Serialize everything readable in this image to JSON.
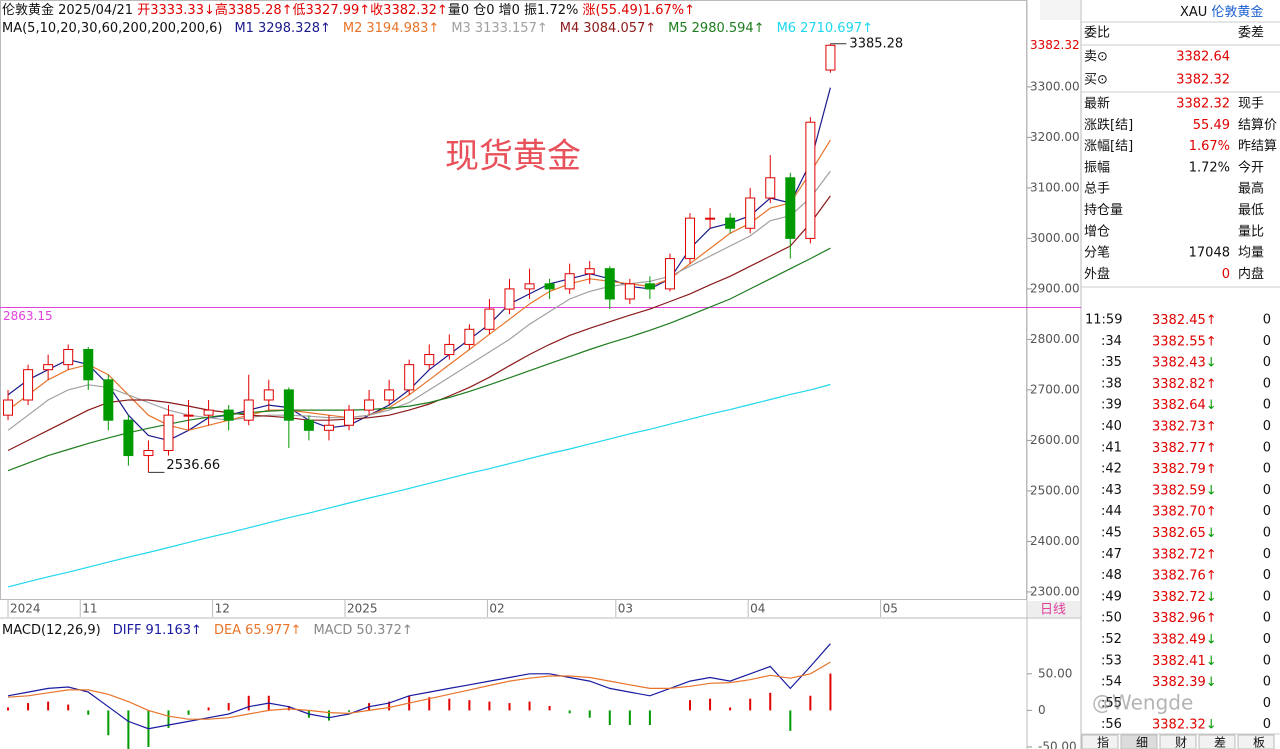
{
  "header": {
    "line1": [
      {
        "text": "伦敦黄金 2025/04/21 ",
        "color": "#111111"
      },
      {
        "text": "开3333.33↓",
        "color": "#e00000"
      },
      {
        "text": "高3385.28↑",
        "color": "#e00000"
      },
      {
        "text": "低3327.99↑",
        "color": "#e00000"
      },
      {
        "text": "收3382.32↑",
        "color": "#e00000"
      },
      {
        "text": "量0  仓0  增0 振1.72% ",
        "color": "#111111"
      },
      {
        "text": "涨(55.49)1.67%↑",
        "color": "#e00000"
      }
    ],
    "ma_params": "MA(5,10,20,30,60,200,200,200,6)",
    "macd_params": "MACD(12,26,9)"
  },
  "watermark": "现货黄金",
  "overlay_mark": "@Wengde",
  "chart_data": [
    {
      "type": "candlestick",
      "color_up": "#e00000",
      "color_down": "#009a00",
      "open": [
        2650,
        2680,
        2740,
        2750,
        2780,
        2720,
        2640,
        2570,
        2580,
        2650,
        2650,
        2660,
        2640,
        2680,
        2700,
        2640,
        2620,
        2630,
        2660,
        2680,
        2700,
        2750,
        2770,
        2790,
        2820,
        2860,
        2900,
        2910,
        2900,
        2930,
        2940,
        2880,
        2910,
        2900,
        2960,
        3040,
        3040,
        3020,
        3080,
        3120,
        3000,
        3333.33
      ],
      "high": [
        2700,
        2750,
        2770,
        2790,
        2785,
        2730,
        2650,
        2600,
        2670,
        2680,
        2680,
        2670,
        2730,
        2720,
        2705,
        2650,
        2650,
        2670,
        2700,
        2720,
        2760,
        2790,
        2810,
        2830,
        2880,
        2920,
        2940,
        2920,
        2950,
        2955,
        2945,
        2920,
        2925,
        2970,
        3050,
        3060,
        3050,
        3100,
        3165,
        3130,
        3240,
        3385.28
      ],
      "low": [
        2640,
        2670,
        2720,
        2740,
        2700,
        2620,
        2550,
        2536.66,
        2570,
        2620,
        2630,
        2620,
        2630,
        2660,
        2585,
        2600,
        2600,
        2620,
        2650,
        2670,
        2690,
        2740,
        2760,
        2780,
        2810,
        2850,
        2880,
        2880,
        2890,
        2910,
        2860,
        2870,
        2880,
        2895,
        2950,
        3020,
        3010,
        3010,
        3070,
        2960,
        2990,
        3327.99
      ],
      "close": [
        2680,
        2740,
        2750,
        2780,
        2720,
        2640,
        2570,
        2580,
        2650,
        2650,
        2660,
        2640,
        2680,
        2700,
        2640,
        2620,
        2630,
        2660,
        2680,
        2700,
        2750,
        2770,
        2790,
        2820,
        2860,
        2900,
        2910,
        2900,
        2930,
        2940,
        2880,
        2910,
        2900,
        2960,
        3040,
        3040,
        3020,
        3080,
        3120,
        3000,
        3230,
        3382.32
      ],
      "series": [
        {
          "name": "M1",
          "last_label": "3298.328↑",
          "color": "#1a1a8c",
          "values": [
            2690,
            2720,
            2740,
            2760,
            2750,
            2710,
            2650,
            2610,
            2600,
            2620,
            2645,
            2650,
            2660,
            2670,
            2665,
            2640,
            2625,
            2630,
            2650,
            2670,
            2700,
            2740,
            2770,
            2800,
            2830,
            2870,
            2890,
            2910,
            2920,
            2930,
            2920,
            2905,
            2900,
            2920,
            2980,
            3020,
            3030,
            3045,
            3080,
            3070,
            3150,
            3298.328
          ]
        },
        {
          "name": "M2",
          "last_label": "3194.983↑",
          "color": "#e8742a",
          "values": [
            2660,
            2690,
            2720,
            2740,
            2750,
            2730,
            2690,
            2650,
            2630,
            2620,
            2630,
            2640,
            2650,
            2660,
            2660,
            2655,
            2650,
            2645,
            2650,
            2665,
            2690,
            2720,
            2750,
            2780,
            2810,
            2840,
            2870,
            2895,
            2910,
            2920,
            2915,
            2910,
            2905,
            2920,
            2950,
            2980,
            3010,
            3030,
            3060,
            3070,
            3130,
            3194.983
          ]
        },
        {
          "name": "M3",
          "last_label": "3133.157↑",
          "color": "#a0a0a0",
          "values": [
            2620,
            2650,
            2680,
            2700,
            2710,
            2705,
            2690,
            2675,
            2660,
            2650,
            2645,
            2640,
            2645,
            2650,
            2650,
            2648,
            2645,
            2645,
            2650,
            2660,
            2675,
            2700,
            2725,
            2750,
            2775,
            2800,
            2830,
            2855,
            2880,
            2895,
            2905,
            2910,
            2915,
            2925,
            2945,
            2965,
            2985,
            3005,
            3035,
            3045,
            3080,
            3133.157
          ]
        },
        {
          "name": "M4",
          "last_label": "3084.057↑",
          "color": "#8b1a1a",
          "values": [
            2580,
            2600,
            2620,
            2640,
            2660,
            2675,
            2680,
            2680,
            2675,
            2668,
            2660,
            2655,
            2650,
            2648,
            2645,
            2640,
            2640,
            2642,
            2645,
            2650,
            2660,
            2672,
            2688,
            2705,
            2725,
            2748,
            2770,
            2790,
            2808,
            2822,
            2835,
            2848,
            2860,
            2875,
            2890,
            2908,
            2925,
            2945,
            2965,
            2985,
            3030,
            3084.057
          ]
        },
        {
          "name": "M5",
          "last_label": "2980.594↑",
          "color": "#1e7d1e",
          "values": [
            2540,
            2555,
            2570,
            2582,
            2594,
            2605,
            2615,
            2624,
            2632,
            2640,
            2646,
            2651,
            2655,
            2658,
            2660,
            2660,
            2660,
            2660,
            2661,
            2664,
            2668,
            2675,
            2685,
            2697,
            2710,
            2724,
            2738,
            2752,
            2766,
            2780,
            2793,
            2805,
            2818,
            2832,
            2848,
            2864,
            2880,
            2900,
            2920,
            2940,
            2960,
            2980.594
          ]
        },
        {
          "name": "M6",
          "last_label": "2710.697↑",
          "color": "#1ed8ec",
          "values": [
            2310,
            2320,
            2330,
            2339,
            2349,
            2359,
            2369,
            2378,
            2388,
            2398,
            2408,
            2417,
            2427,
            2437,
            2447,
            2456,
            2466,
            2476,
            2486,
            2495,
            2505,
            2515,
            2525,
            2535,
            2544,
            2554,
            2564,
            2574,
            2583,
            2593,
            2603,
            2613,
            2622,
            2632,
            2642,
            2652,
            2661,
            2671,
            2681,
            2691,
            2700,
            2710.697
          ]
        }
      ],
      "xlim": [
        -0.4,
        50.8
      ],
      "xticks": [
        {
          "value": 0,
          "label": "2024"
        },
        {
          "value": 3.6,
          "label": "11"
        },
        {
          "value": 10.2,
          "label": "12"
        },
        {
          "value": 16.8,
          "label": "2025"
        },
        {
          "value": 23.9,
          "label": "02"
        },
        {
          "value": 30.3,
          "label": "03"
        },
        {
          "value": 36.9,
          "label": "04"
        },
        {
          "value": 43.5,
          "label": "05"
        }
      ],
      "ylim": [
        2284,
        3472
      ],
      "yticks": [
        {
          "value": 3300,
          "label": "3300.00"
        },
        {
          "value": 3200,
          "label": "3200.00"
        },
        {
          "value": 3100,
          "label": "3100.00"
        },
        {
          "value": 3000,
          "label": "3000.00"
        },
        {
          "value": 2900,
          "label": "2900.00"
        },
        {
          "value": 2800,
          "label": "2800.00"
        },
        {
          "value": 2700,
          "label": "2700.00"
        },
        {
          "value": 2600,
          "label": "2600.00"
        },
        {
          "value": 2500,
          "label": "2500.00"
        },
        {
          "value": 2400,
          "label": "2400.00"
        },
        {
          "value": 2300,
          "label": "2300.00"
        }
      ],
      "hline": {
        "value": 2863.15,
        "color": "#e040e0"
      },
      "period_label": "日线"
    },
    {
      "type": "macd",
      "xlim": [
        -0.4,
        50.8
      ],
      "ylim": [
        -52.8,
        123.6
      ],
      "yticks": [
        {
          "value": 50,
          "label": "50.00"
        },
        0,
        {
          "value": -50,
          "label": "-50.00"
        }
      ],
      "series": [
        {
          "name": "DIFF",
          "last_label": "91.163↑",
          "color": "#1a1aa0",
          "values": [
            20,
            25,
            30,
            32,
            25,
            5,
            -15,
            -25,
            -20,
            -15,
            -10,
            -5,
            5,
            10,
            5,
            -5,
            -10,
            -5,
            5,
            10,
            20,
            25,
            30,
            35,
            40,
            45,
            50,
            50,
            45,
            40,
            30,
            25,
            20,
            30,
            40,
            45,
            40,
            50,
            60,
            30,
            60,
            91.163
          ]
        },
        {
          "name": "DEA",
          "last_label": "65.977↑",
          "color": "#e8742a",
          "values": [
            18,
            20,
            24,
            28,
            28,
            22,
            12,
            0,
            -8,
            -12,
            -12,
            -10,
            -5,
            0,
            2,
            0,
            -3,
            -4,
            0,
            4,
            10,
            16,
            22,
            28,
            34,
            40,
            44,
            47,
            47,
            45,
            40,
            35,
            30,
            30,
            33,
            37,
            38,
            42,
            48,
            44,
            50,
            65.977
          ]
        }
      ],
      "bars": {
        "name": "MACD",
        "last_label": "50.372↑",
        "color": "#888888",
        "color_up": "#e00000",
        "color_down": "#009a00",
        "values": [
          4,
          10,
          12,
          8,
          -6,
          -34,
          -54,
          -50,
          -24,
          -6,
          4,
          10,
          20,
          20,
          6,
          -10,
          -14,
          -2,
          10,
          12,
          20,
          18,
          16,
          14,
          12,
          10,
          12,
          6,
          -4,
          -10,
          -20,
          -20,
          -20,
          0,
          14,
          16,
          4,
          16,
          24,
          -28,
          20,
          50.372
        ]
      }
    }
  ],
  "quote": {
    "symbol": "XAU",
    "name": "伦敦黄金",
    "top_left": "委比",
    "top_right": "委差",
    "book": [
      {
        "label": "卖⊙",
        "value": "3382.64"
      },
      {
        "label": "买⊙",
        "value": "3382.32"
      }
    ],
    "rows": [
      {
        "label": "最新",
        "value": "3382.32",
        "color": "#e00000",
        "right": "现手"
      },
      {
        "label": "涨跌[结]",
        "value": "55.49",
        "color": "#e00000",
        "right": "结算价"
      },
      {
        "label": "涨幅[结]",
        "value": "1.67%",
        "color": "#e00000",
        "right": "昨结算"
      },
      {
        "label": "振幅",
        "value": "1.72%",
        "color": "#111111",
        "right": "今开"
      },
      {
        "label": "总手",
        "right": "最高"
      },
      {
        "label": "持仓量",
        "right": "最低"
      },
      {
        "label": "增仓",
        "right": "量比"
      },
      {
        "label": "分笔",
        "value": "17048",
        "color": "#111111",
        "right": "均量"
      },
      {
        "label": "外盘",
        "value": "0",
        "color": "#e00000",
        "right": "内盘"
      }
    ]
  },
  "ticks": [
    {
      "time": "11:59",
      "price": "3382.45",
      "arrow": "↑",
      "arrow_color": "#e00000",
      "vol": 0
    },
    {
      "time": ":34",
      "price": "3382.55",
      "arrow": "↑",
      "arrow_color": "#e00000",
      "vol": 0
    },
    {
      "time": ":35",
      "price": "3382.43",
      "arrow": "↓",
      "arrow_color": "#009a00",
      "vol": 0
    },
    {
      "time": ":38",
      "price": "3382.82",
      "arrow": "↑",
      "arrow_color": "#e00000",
      "vol": 0
    },
    {
      "time": ":39",
      "price": "3382.64",
      "arrow": "↓",
      "arrow_color": "#009a00",
      "vol": 0
    },
    {
      "time": ":40",
      "price": "3382.73",
      "arrow": "↑",
      "arrow_color": "#e00000",
      "vol": 0
    },
    {
      "time": ":41",
      "price": "3382.77",
      "arrow": "↑",
      "arrow_color": "#e00000",
      "vol": 0
    },
    {
      "time": ":42",
      "price": "3382.79",
      "arrow": "↑",
      "arrow_color": "#e00000",
      "vol": 0
    },
    {
      "time": ":43",
      "price": "3382.59",
      "arrow": "↓",
      "arrow_color": "#009a00",
      "vol": 0
    },
    {
      "time": ":44",
      "price": "3382.70",
      "arrow": "↑",
      "arrow_color": "#e00000",
      "vol": 0
    },
    {
      "time": ":45",
      "price": "3382.65",
      "arrow": "↓",
      "arrow_color": "#009a00",
      "vol": 0
    },
    {
      "time": ":47",
      "price": "3382.72",
      "arrow": "↑",
      "arrow_color": "#e00000",
      "vol": 0
    },
    {
      "time": ":48",
      "price": "3382.76",
      "arrow": "↑",
      "arrow_color": "#e00000",
      "vol": 0
    },
    {
      "time": ":49",
      "price": "3382.72",
      "arrow": "↓",
      "arrow_color": "#009a00",
      "vol": 0
    },
    {
      "time": ":50",
      "price": "3382.96",
      "arrow": "↑",
      "arrow_color": "#e00000",
      "vol": 0
    },
    {
      "time": ":52",
      "price": "3382.49",
      "arrow": "↓",
      "arrow_color": "#009a00",
      "vol": 0
    },
    {
      "time": ":53",
      "price": "3382.41",
      "arrow": "↓",
      "arrow_color": "#009a00",
      "vol": 0
    },
    {
      "time": ":54",
      "price": "3382.39",
      "arrow": "↓",
      "arrow_color": "#009a00",
      "vol": 0
    },
    {
      "time": ":55",
      "vol": 0
    },
    {
      "time": ":56",
      "price": "3382.32",
      "arrow": "↓",
      "arrow_color": "#009a00",
      "vol": 0
    }
  ],
  "tabs": [
    "指",
    "细",
    "财",
    "差",
    "板"
  ]
}
